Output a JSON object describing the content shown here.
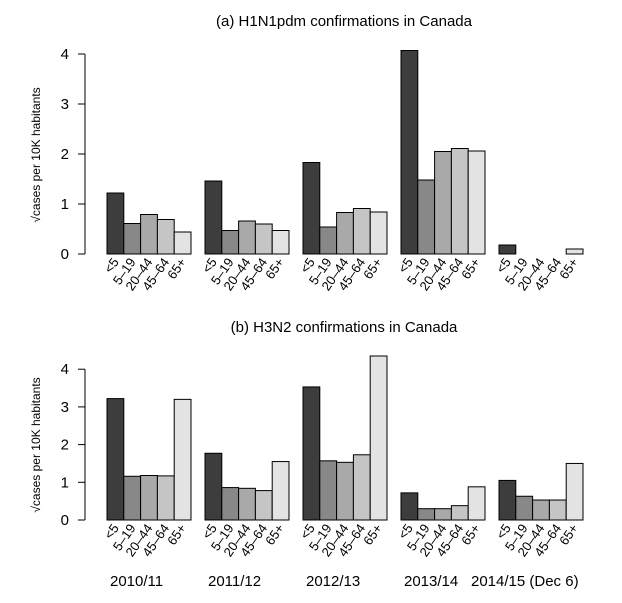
{
  "chart_data": [
    {
      "type": "bar",
      "title": "(a) H1N1pdm confirmations in Canada",
      "ylabel": "cases per 10K habitants",
      "ylabel_symbol": "√",
      "ylim": [
        0,
        4
      ],
      "yticks": [
        "0",
        "1",
        "2",
        "3",
        "4"
      ],
      "categories": [
        "<5",
        "5–19",
        "20–44",
        "45–64",
        "65+"
      ],
      "groups": [
        {
          "season": "2010/11",
          "values": [
            1.22,
            0.61,
            0.79,
            0.69,
            0.44
          ]
        },
        {
          "season": "2011/12",
          "values": [
            1.46,
            0.47,
            0.66,
            0.6,
            0.47
          ]
        },
        {
          "season": "2012/13",
          "values": [
            1.83,
            0.54,
            0.83,
            0.91,
            0.84
          ]
        },
        {
          "season": "2013/14",
          "values": [
            4.07,
            1.48,
            2.05,
            2.11,
            2.06
          ]
        },
        {
          "season": "2014/15 (Dec 6)",
          "values": [
            0.18,
            0.0,
            0.0,
            0.0,
            0.1
          ]
        }
      ]
    },
    {
      "type": "bar",
      "title": "(b) H3N2 confirmations in Canada",
      "ylabel": "cases per 10K habitants",
      "ylabel_symbol": "√",
      "ylim": [
        0,
        4
      ],
      "yticks": [
        "0",
        "1",
        "2",
        "3",
        "4"
      ],
      "categories": [
        "<5",
        "5–19",
        "20–44",
        "45–64",
        "65+"
      ],
      "groups": [
        {
          "season": "2010/11",
          "values": [
            3.22,
            1.16,
            1.18,
            1.17,
            3.2
          ]
        },
        {
          "season": "2011/12",
          "values": [
            1.77,
            0.86,
            0.84,
            0.78,
            1.55
          ]
        },
        {
          "season": "2012/13",
          "values": [
            3.53,
            1.57,
            1.53,
            1.73,
            4.35
          ]
        },
        {
          "season": "2013/14",
          "values": [
            0.72,
            0.3,
            0.3,
            0.38,
            0.88
          ]
        },
        {
          "season": "2014/15 (Dec 6)",
          "values": [
            1.05,
            0.63,
            0.53,
            0.53,
            1.5
          ]
        }
      ]
    }
  ],
  "colors": {
    "bar_fills": [
      "#3d3d3d",
      "#888888",
      "#a9a9a9",
      "#c5c5c5",
      "#e3e3e3"
    ],
    "stroke": "#000000"
  }
}
